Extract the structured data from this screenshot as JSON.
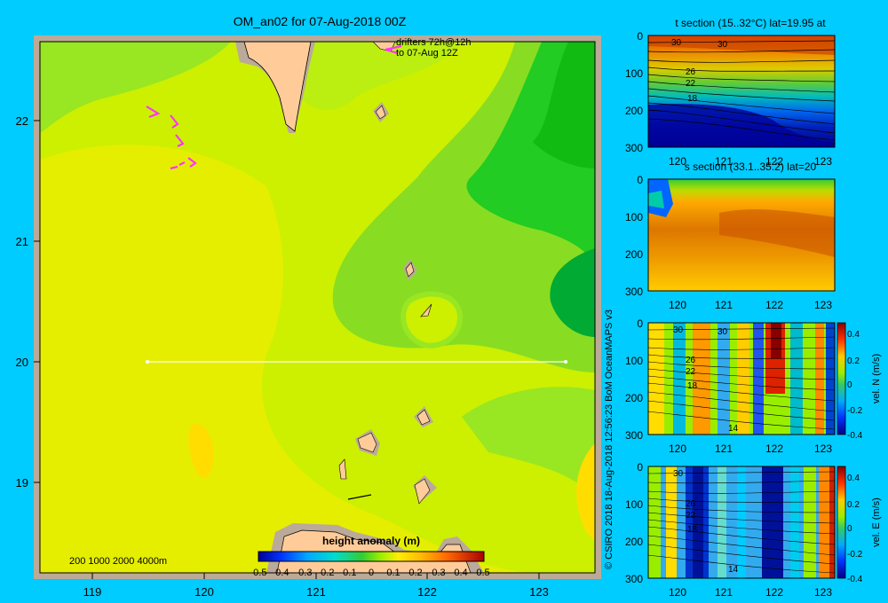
{
  "main_map": {
    "title": "OM_an02 for 07-Aug-2018 00Z",
    "drifter_label": [
      "drifters 72h@12h",
      "to 07-Aug 12Z"
    ],
    "depth_legend": "200  1000  2000  4000m",
    "x_ticks": [
      "119",
      "120",
      "121",
      "122",
      "123"
    ],
    "y_ticks": [
      "22",
      "21",
      "20",
      "19"
    ],
    "colorbar": {
      "title": "height anomaly  (m)",
      "ticks": [
        "-0.5",
        "-0.4",
        "-0.3",
        "-0.2",
        "-0.1",
        "0",
        "0.1",
        "0.2",
        "0.3",
        "0.4",
        "0.5"
      ]
    },
    "colors": {
      "land": "#ffcc99",
      "shelf": "#bbaa99",
      "frame": "#bbaa99",
      "section_line": "#ffffff",
      "drifter": "#ff33ff"
    }
  },
  "credit": "© CSIRO 2018   18-Aug-2018 12:56:23 BoM OceanMAPS v3",
  "panels": [
    {
      "title": "t section (15..32°C) lat=19.95 at",
      "y_ticks": [
        "0",
        "100",
        "200",
        "300"
      ],
      "x_ticks": [
        "120",
        "121",
        "122",
        "123"
      ],
      "contour_labels": [
        "30",
        "30",
        "26",
        "22",
        "18"
      ]
    },
    {
      "title": "s section (33.1..35.2) lat=20",
      "y_ticks": [
        "0",
        "100",
        "200",
        "300"
      ],
      "x_ticks": [
        "120",
        "121",
        "122",
        "123"
      ]
    },
    {
      "y_ticks": [
        "0",
        "100",
        "200",
        "300"
      ],
      "x_ticks": [
        "120",
        "121",
        "122",
        "123"
      ],
      "contour_labels": [
        "30",
        "30",
        "26",
        "22",
        "18",
        "14"
      ],
      "colorbar_ticks": [
        "0.4",
        "0.2",
        "0",
        "-0.2",
        "-0.4"
      ],
      "colorbar_label": "vel. N  (m/s)"
    },
    {
      "y_ticks": [
        "0",
        "100",
        "200",
        "300"
      ],
      "x_ticks": [
        "120",
        "121",
        "122",
        "123"
      ],
      "contour_labels": [
        "30",
        "26",
        "22",
        "18",
        "14"
      ],
      "colorbar_ticks": [
        "0.4",
        "0.2",
        "0",
        "-0.2",
        "-0.4"
      ],
      "colorbar_label": "vel. E  (m/s)"
    }
  ]
}
